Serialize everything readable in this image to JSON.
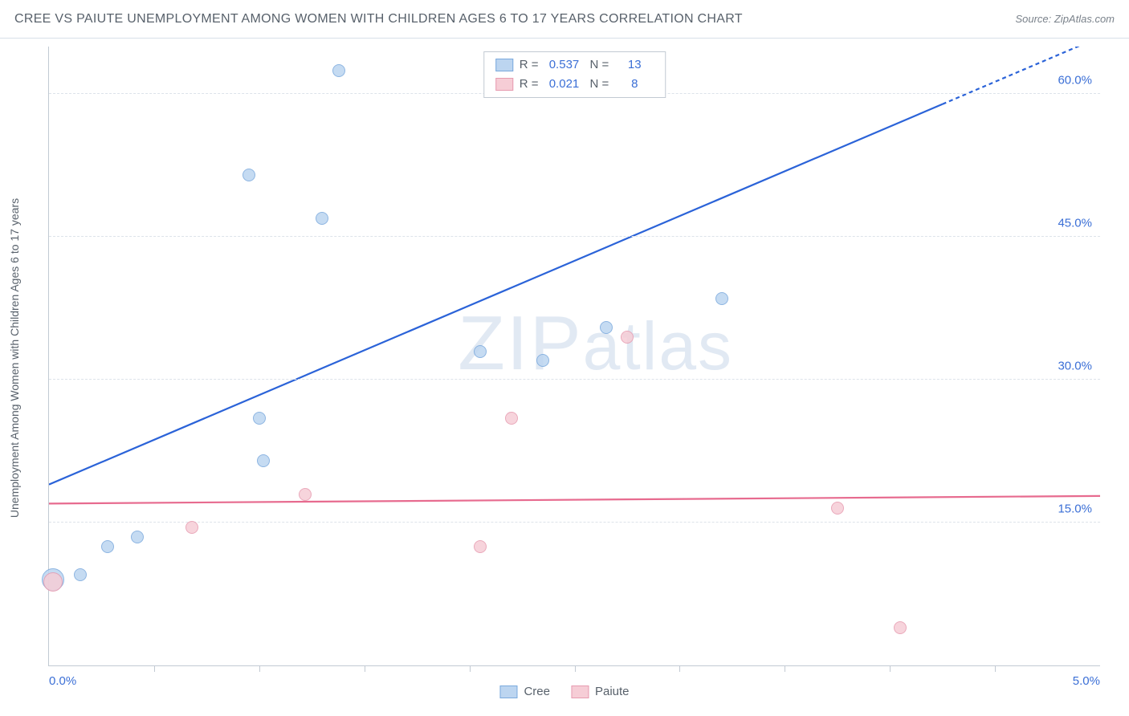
{
  "header": {
    "title": "CREE VS PAIUTE UNEMPLOYMENT AMONG WOMEN WITH CHILDREN AGES 6 TO 17 YEARS CORRELATION CHART",
    "source": "Source: ZipAtlas.com"
  },
  "chart": {
    "type": "scatter",
    "ylabel": "Unemployment Among Women with Children Ages 6 to 17 years",
    "xlim": [
      0.0,
      5.0
    ],
    "ylim": [
      0.0,
      65.0
    ],
    "x_ticks": [
      0.5,
      1.0,
      1.5,
      2.0,
      2.5,
      3.0,
      3.5,
      4.0,
      4.5
    ],
    "y_gridlines": [
      15.0,
      30.0,
      45.0,
      60.0
    ],
    "y_tick_labels": [
      "15.0%",
      "30.0%",
      "45.0%",
      "60.0%"
    ],
    "x_min_label": "0.0%",
    "x_max_label": "5.0%",
    "background_color": "#ffffff",
    "grid_color": "#dde3ea",
    "axis_color": "#c2cad3",
    "label_color": "#58616b",
    "number_color": "#3b6fd6",
    "watermark": "ZIPatlas",
    "series": [
      {
        "name": "Cree",
        "fill": "#bcd5f0",
        "stroke": "#7aa9dd",
        "trend_color": "#2b63d8",
        "trend": {
          "y_at_xmin": 19.0,
          "y_at_xmax": 66.0,
          "dash_after_x": 4.25
        },
        "R": "0.537",
        "N": "13",
        "points": [
          {
            "x": 0.02,
            "y": 9.0,
            "r": 14
          },
          {
            "x": 0.15,
            "y": 9.5,
            "r": 8
          },
          {
            "x": 0.28,
            "y": 12.5,
            "r": 8
          },
          {
            "x": 0.42,
            "y": 13.5,
            "r": 8
          },
          {
            "x": 1.02,
            "y": 21.5,
            "r": 8
          },
          {
            "x": 1.0,
            "y": 26.0,
            "r": 8
          },
          {
            "x": 0.95,
            "y": 51.5,
            "r": 8
          },
          {
            "x": 1.3,
            "y": 47.0,
            "r": 8
          },
          {
            "x": 1.38,
            "y": 62.5,
            "r": 8
          },
          {
            "x": 2.05,
            "y": 33.0,
            "r": 8
          },
          {
            "x": 2.35,
            "y": 32.0,
            "r": 8
          },
          {
            "x": 2.65,
            "y": 35.5,
            "r": 8
          },
          {
            "x": 3.2,
            "y": 38.5,
            "r": 8
          }
        ]
      },
      {
        "name": "Paiute",
        "fill": "#f6cdd6",
        "stroke": "#e79bb0",
        "trend_color": "#e76b8f",
        "trend": {
          "y_at_xmin": 17.0,
          "y_at_xmax": 17.8,
          "dash_after_x": 5.0
        },
        "R": "0.021",
        "N": "8",
        "points": [
          {
            "x": 0.02,
            "y": 8.8,
            "r": 12
          },
          {
            "x": 0.68,
            "y": 14.5,
            "r": 8
          },
          {
            "x": 1.22,
            "y": 18.0,
            "r": 8
          },
          {
            "x": 2.05,
            "y": 12.5,
            "r": 8
          },
          {
            "x": 2.2,
            "y": 26.0,
            "r": 8
          },
          {
            "x": 2.75,
            "y": 34.5,
            "r": 8
          },
          {
            "x": 3.75,
            "y": 16.5,
            "r": 8
          },
          {
            "x": 4.05,
            "y": 4.0,
            "r": 8
          }
        ]
      }
    ],
    "legend_top": {
      "rows": [
        {
          "swatch_fill": "#bcd5f0",
          "swatch_stroke": "#7aa9dd",
          "r_label": "R =",
          "r_val": "0.537",
          "n_label": "N =",
          "n_val": "13"
        },
        {
          "swatch_fill": "#f6cdd6",
          "swatch_stroke": "#e79bb0",
          "r_label": "R =",
          "r_val": "0.021",
          "n_label": "N =",
          "n_val": "8"
        }
      ]
    },
    "legend_bottom": {
      "items": [
        {
          "swatch_fill": "#bcd5f0",
          "swatch_stroke": "#7aa9dd",
          "label": "Cree"
        },
        {
          "swatch_fill": "#f6cdd6",
          "swatch_stroke": "#e79bb0",
          "label": "Paiute"
        }
      ]
    }
  }
}
